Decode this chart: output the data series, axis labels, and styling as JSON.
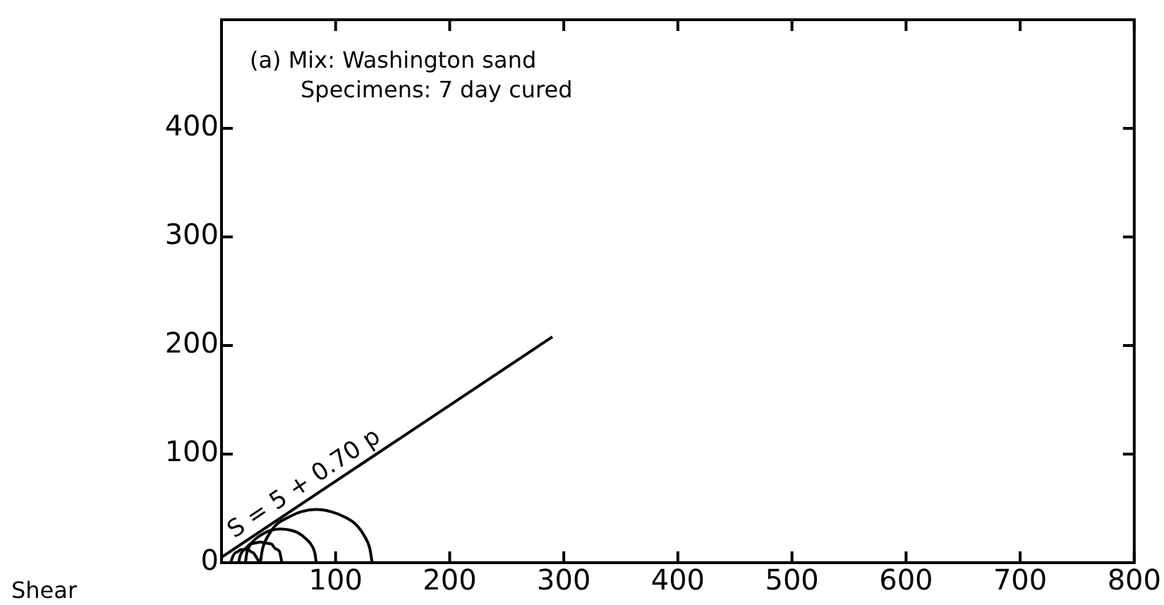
{
  "chart_data": {
    "type": "line",
    "xlim": [
      0,
      800
    ],
    "ylim": [
      0,
      500
    ],
    "xticks": [
      100,
      200,
      300,
      400,
      500,
      600,
      700,
      800
    ],
    "yticks": [
      0,
      100,
      200,
      300,
      400
    ],
    "grid": false,
    "legend": false,
    "marker": "none",
    "line_style": "solid",
    "annotations": [
      "(a) Mix: Washington sand",
      "Specimens: 7 day cured",
      {
        "text": "S = 5 + 0.70 p",
        "x": 80,
        "y": 61
      },
      "Shear"
    ],
    "series": [
      {
        "color": "#000000",
        "x": [
          0,
          290
        ],
        "values": [
          5,
          208
        ]
      },
      {
        "color": "#000000",
        "x": [
          34,
          36,
          41,
          48,
          59,
          70,
          83,
          96,
          108,
          118,
          125,
          130,
          132
        ],
        "values": [
          0,
          13,
          25,
          35,
          42,
          47,
          49,
          47,
          42,
          35,
          25,
          13,
          0
        ]
      },
      {
        "color": "#000000",
        "x": [
          21,
          22,
          25,
          30,
          37,
          44,
          52,
          60,
          68,
          74,
          79,
          82,
          83
        ],
        "values": [
          0,
          8,
          16,
          22,
          27,
          30,
          31,
          30,
          27,
          22,
          16,
          8,
          0
        ]
      },
      {
        "color": "#000000",
        "x": [
          15,
          16,
          18,
          21,
          25,
          29,
          34,
          39,
          44,
          47,
          51,
          52,
          53
        ],
        "values": [
          0,
          5,
          10,
          13,
          17,
          18,
          19,
          18,
          17,
          13,
          10,
          5,
          0
        ]
      },
      {
        "color": "#000000",
        "x": [
          8,
          9,
          10,
          12,
          14,
          17,
          20,
          23,
          26,
          28,
          30,
          32,
          32
        ],
        "values": [
          0,
          3,
          6,
          9,
          10,
          12,
          12,
          12,
          10,
          9,
          6,
          3,
          0
        ]
      }
    ]
  }
}
